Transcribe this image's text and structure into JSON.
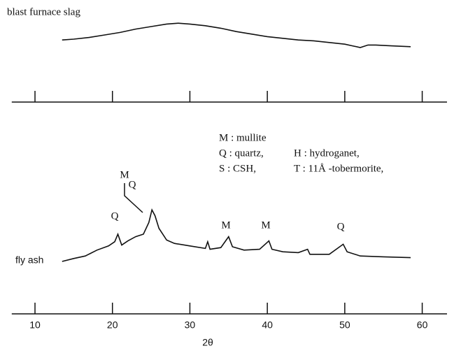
{
  "chart_data": [
    {
      "type": "line",
      "series": [
        {
          "name": "blast furnace slag",
          "color": "#111",
          "x": [
            13.5,
            15,
            17,
            19,
            21,
            23,
            25,
            27,
            28.5,
            30,
            32,
            34,
            36,
            38,
            40,
            42,
            44,
            46,
            48,
            50,
            51,
            52,
            53,
            54,
            56,
            58.5
          ],
          "values": [
            74,
            75,
            77,
            80,
            83,
            87,
            90,
            93,
            94,
            93,
            91,
            88,
            84,
            81,
            78,
            76,
            74,
            73,
            71,
            69,
            67,
            65,
            68,
            68,
            67,
            66
          ]
        }
      ],
      "xlim": [
        7,
        63.2
      ],
      "xticks": [
        10,
        20,
        30,
        40,
        50,
        60
      ],
      "tick_labels": false,
      "ylim": [
        0,
        100
      ]
    },
    {
      "type": "line",
      "xlabel": "2θ",
      "series": [
        {
          "name": "fly ash",
          "color": "#111",
          "x": [
            13.5,
            15,
            16.5,
            18,
            19.5,
            20.3,
            20.7,
            21.2,
            22,
            23,
            24,
            24.7,
            25.1,
            25.5,
            26,
            27,
            28,
            30,
            32,
            32.3,
            32.6,
            34,
            35,
            35.5,
            37,
            39,
            40.2,
            40.6,
            42,
            44,
            45.2,
            45.5,
            48,
            49.8,
            50.3,
            52,
            55,
            58.5
          ],
          "values": [
            62.5,
            66,
            69,
            76,
            81,
            86,
            95,
            82,
            87,
            92,
            95,
            109,
            124,
            117,
            102,
            88,
            84,
            81,
            78,
            86,
            77,
            79,
            92,
            80,
            76,
            77,
            87,
            77,
            74,
            73,
            77,
            71,
            71,
            83,
            74,
            69,
            68,
            67
          ]
        }
      ],
      "annotations": [
        "Q",
        "M",
        "Q",
        "M",
        "M",
        "Q"
      ],
      "notes": [
        "M : mullite",
        "Q : quartz,",
        "H : hydroganet,",
        "S : CSH,",
        "T : 11Å -tobermorite,"
      ],
      "xlim": [
        7,
        63.2
      ],
      "xticks": [
        10,
        20,
        30,
        40,
        50,
        60
      ],
      "tick_labels": true,
      "ylim": [
        0,
        150
      ]
    }
  ]
}
